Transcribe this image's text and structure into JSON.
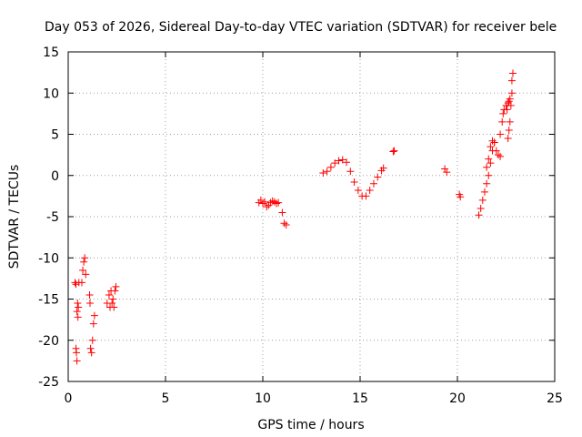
{
  "chart_data": {
    "type": "scatter",
    "title": "Day 053 of 2026, Sidereal Day-to-day VTEC variation (SDTVAR) for receiver bele",
    "xlabel": "GPS time / hours",
    "ylabel": "SDTVAR / TECUs",
    "xlim": [
      0,
      25
    ],
    "ylim": [
      -25,
      15
    ],
    "xticks": [
      0,
      5,
      10,
      15,
      20,
      25
    ],
    "yticks": [
      -25,
      -20,
      -15,
      -10,
      -5,
      0,
      5,
      10,
      15
    ],
    "grid": true,
    "marker": "+",
    "color": "#ff0000",
    "series": [
      {
        "name": "SDTVAR",
        "x": [
          0.35,
          0.4,
          0.4,
          0.42,
          0.45,
          0.45,
          0.48,
          0.5,
          0.52,
          0.55,
          0.7,
          0.75,
          0.8,
          0.85,
          0.9,
          1.1,
          1.12,
          1.15,
          1.2,
          1.25,
          1.3,
          1.35,
          2.0,
          2.1,
          2.15,
          2.2,
          2.25,
          2.3,
          2.35,
          2.4,
          2.45,
          9.8,
          9.9,
          10.0,
          10.1,
          10.2,
          10.3,
          10.4,
          10.5,
          10.6,
          10.7,
          10.8,
          11.0,
          11.1,
          11.2,
          13.1,
          13.3,
          13.5,
          13.7,
          13.9,
          14.1,
          14.3,
          14.5,
          14.7,
          14.9,
          15.1,
          15.3,
          15.5,
          15.7,
          15.9,
          16.1,
          16.2,
          16.7,
          16.75,
          19.35,
          19.45,
          20.1,
          20.15,
          21.1,
          21.2,
          21.3,
          21.4,
          21.5,
          21.6,
          21.7,
          21.8,
          21.9,
          21.5,
          21.6,
          21.7,
          21.8,
          21.9,
          22.0,
          22.1,
          22.2,
          22.2,
          22.3,
          22.35,
          22.4,
          22.5,
          22.55,
          22.6,
          22.65,
          22.7,
          22.6,
          22.65,
          22.7,
          22.75,
          22.8,
          22.8,
          22.85
        ],
        "y": [
          -13.0,
          -13.2,
          -21.0,
          -21.5,
          -22.5,
          -16.5,
          -15.5,
          -17.2,
          -16.0,
          -13.0,
          -13.0,
          -11.5,
          -10.5,
          -10.0,
          -12.0,
          -14.5,
          -15.5,
          -21.0,
          -21.5,
          -20.0,
          -18.0,
          -17.0,
          -15.5,
          -14.5,
          -16.0,
          -14.0,
          -15.5,
          -15.0,
          -16.0,
          -14.0,
          -13.5,
          -3.3,
          -3.0,
          -3.4,
          -3.2,
          -3.8,
          -3.6,
          -3.3,
          -3.1,
          -3.2,
          -3.4,
          -3.3,
          -4.5,
          -5.8,
          -6.0,
          0.3,
          0.5,
          1.0,
          1.5,
          1.8,
          1.9,
          1.6,
          0.5,
          -0.8,
          -1.8,
          -2.5,
          -2.5,
          -1.8,
          -1.0,
          -0.2,
          0.6,
          0.9,
          2.9,
          3.0,
          0.8,
          0.4,
          -2.3,
          -2.6,
          -4.8,
          -4.0,
          -3.0,
          -2.0,
          -1.0,
          0.0,
          1.5,
          3.0,
          4.0,
          1.0,
          2.0,
          3.5,
          4.2,
          4.0,
          3.0,
          2.5,
          2.3,
          5.0,
          6.5,
          7.5,
          8.0,
          8.5,
          8.0,
          8.8,
          9.0,
          9.3,
          4.5,
          5.5,
          6.5,
          8.5,
          10.0,
          11.5,
          12.4
        ]
      }
    ]
  }
}
